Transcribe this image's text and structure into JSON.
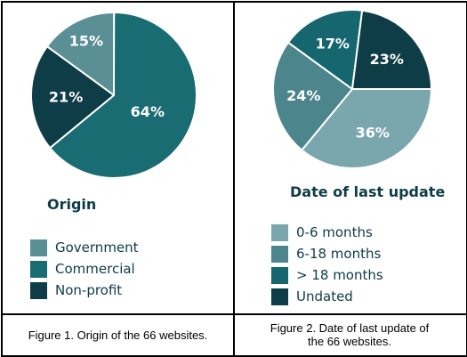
{
  "colors": {
    "government": "#5b8f96",
    "commercial": "#1a6c73",
    "nonprofit": "#0e3c47",
    "m0_6": "#7aa7ae",
    "m6_18": "#4d858d",
    "m18plus": "#15666e",
    "undated": "#0e3c47"
  },
  "captions": {
    "fig1": "Figure 1. Origin of the 66 websites.",
    "fig2": "Figure 2. Date of last update of the 66 websites."
  },
  "chart_data": [
    {
      "type": "pie",
      "title": "Origin",
      "categories": [
        "Government",
        "Commercial",
        "Non-profit"
      ],
      "values": [
        15,
        64,
        21
      ],
      "value_labels": [
        "15%",
        "64%",
        "21%"
      ],
      "legend": "bottom-left"
    },
    {
      "type": "pie",
      "title": "Date of last update",
      "categories": [
        "0-6 months",
        "6-18 months",
        "> 18 months",
        "Undated"
      ],
      "values": [
        36,
        24,
        17,
        23
      ],
      "value_labels": [
        "36%",
        "24%",
        "17%",
        "23%"
      ],
      "legend": "bottom-left"
    }
  ]
}
